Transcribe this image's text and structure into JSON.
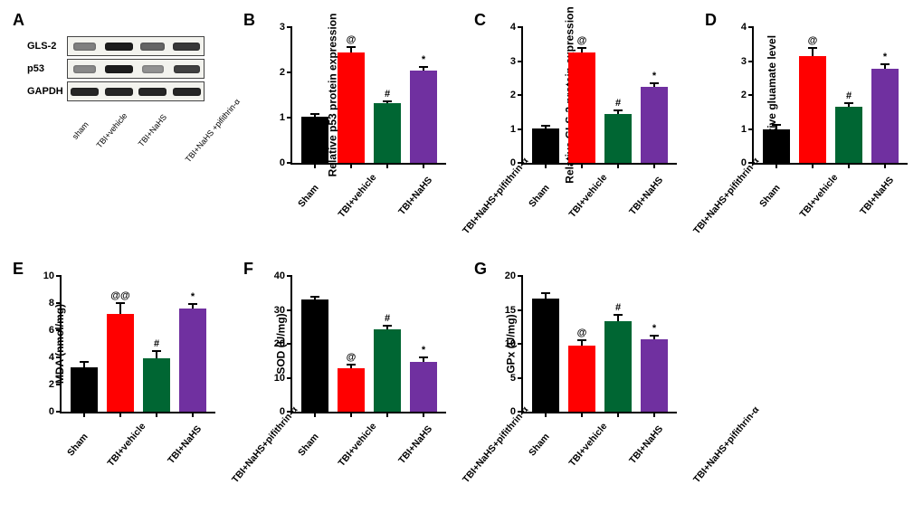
{
  "colors": {
    "sham": "#000000",
    "vehicle": "#ff0000",
    "nahs": "#006633",
    "pifithrin": "#7030a0"
  },
  "groups_short": [
    "sham",
    "TBI+vehicle",
    "TBI+NaHS",
    "TBI+NaHS\n+pifithrin-α"
  ],
  "groups": [
    "Sham",
    "TBI+vehicle",
    "TBI+NaHS",
    "TBI+NaHS+pifithrin-α"
  ],
  "panelA": {
    "label": "A",
    "rows": [
      {
        "name": "GLS-2",
        "intens": [
          0.4,
          0.95,
          0.55,
          0.8
        ]
      },
      {
        "name": "p53",
        "intens": [
          0.35,
          0.95,
          0.3,
          0.75
        ]
      },
      {
        "name": "GAPDH",
        "intens": [
          0.9,
          0.9,
          0.9,
          0.9
        ]
      }
    ]
  },
  "charts": [
    {
      "id": "B",
      "ylabel": "Relative p53 protein expression",
      "ymax": 3,
      "ystep": 1,
      "bars": [
        {
          "v": 1.03,
          "e": 0.05,
          "sig": ""
        },
        {
          "v": 2.45,
          "e": 0.12,
          "sig": "@"
        },
        {
          "v": 1.32,
          "e": 0.05,
          "sig": "#"
        },
        {
          "v": 2.05,
          "e": 0.07,
          "sig": "*"
        }
      ]
    },
    {
      "id": "C",
      "ylabel": "Relative GLS-2 protein expression",
      "ymax": 4,
      "ystep": 1,
      "bars": [
        {
          "v": 1.02,
          "e": 0.08,
          "sig": ""
        },
        {
          "v": 3.25,
          "e": 0.15,
          "sig": "@"
        },
        {
          "v": 1.45,
          "e": 0.1,
          "sig": "#"
        },
        {
          "v": 2.25,
          "e": 0.1,
          "sig": "*"
        }
      ]
    },
    {
      "id": "D",
      "ylabel": "Relative gluamate level",
      "ymax": 4,
      "ystep": 1,
      "bars": [
        {
          "v": 1.0,
          "e": 0.12,
          "sig": ""
        },
        {
          "v": 3.15,
          "e": 0.25,
          "sig": "@"
        },
        {
          "v": 1.65,
          "e": 0.12,
          "sig": "#"
        },
        {
          "v": 2.78,
          "e": 0.13,
          "sig": "*"
        }
      ]
    },
    {
      "id": "E",
      "ylabel": "MDA (nmol/mg)",
      "ymax": 10,
      "ystep": 2,
      "bars": [
        {
          "v": 3.3,
          "e": 0.4,
          "sig": ""
        },
        {
          "v": 7.2,
          "e": 0.8,
          "sig": "@@"
        },
        {
          "v": 3.95,
          "e": 0.5,
          "sig": "#"
        },
        {
          "v": 7.6,
          "e": 0.35,
          "sig": "*"
        }
      ]
    },
    {
      "id": "F",
      "ylabel": "SOD (U/mg)",
      "ymax": 40,
      "ystep": 10,
      "bars": [
        {
          "v": 33.0,
          "e": 1.0,
          "sig": ""
        },
        {
          "v": 12.8,
          "e": 1.2,
          "sig": "@"
        },
        {
          "v": 24.4,
          "e": 1.0,
          "sig": "#"
        },
        {
          "v": 14.7,
          "e": 1.2,
          "sig": "*"
        }
      ]
    },
    {
      "id": "G",
      "ylabel": "GPx (U/mg)",
      "ymax": 20,
      "ystep": 5,
      "bars": [
        {
          "v": 16.7,
          "e": 0.8,
          "sig": ""
        },
        {
          "v": 9.7,
          "e": 0.8,
          "sig": "@"
        },
        {
          "v": 13.4,
          "e": 0.9,
          "sig": "#"
        },
        {
          "v": 10.7,
          "e": 0.5,
          "sig": "*"
        }
      ]
    }
  ]
}
